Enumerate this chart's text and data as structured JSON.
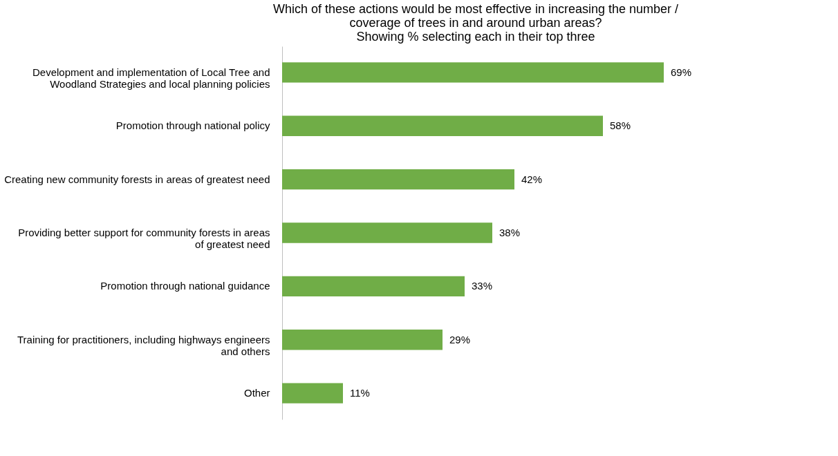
{
  "chart_data": {
    "type": "bar",
    "orientation": "horizontal",
    "title": "Which of these actions would be most effective in increasing the number / coverage of trees in and around urban areas?",
    "subtitle": "Showing % selecting each in their top three",
    "categories": [
      "Development and implementation of Local Tree and Woodland Strategies and local planning policies",
      "Promotion through national policy",
      "Creating new community forests in areas of greatest need",
      "Providing better support for community forests in areas of greatest need",
      "Promotion through national guidance",
      "Training for practitioners, including highways engineers and others",
      "Other"
    ],
    "values": [
      69,
      58,
      42,
      38,
      33,
      29,
      11
    ],
    "value_labels": [
      "69%",
      "58%",
      "42%",
      "38%",
      "33%",
      "29%",
      "11%"
    ],
    "color": "#70ad47",
    "grid": false
  }
}
